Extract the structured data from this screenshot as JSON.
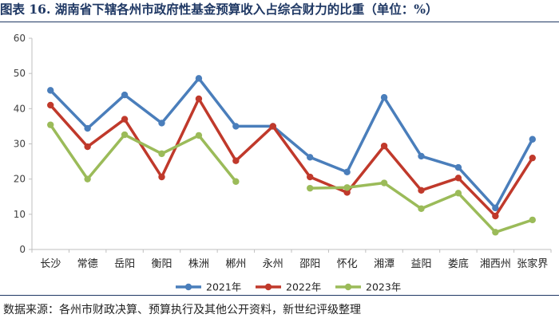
{
  "title": "图表 16.  湖南省下辖各州市政府性基金预算收入占综合财力的比重（单位：%）",
  "source": "数据来源：各州市财政决算、预算执行及其他公开资料，新世纪评级整理",
  "colors": {
    "2021年": "#4a7ebb",
    "2022年": "#c0392b",
    "2023年": "#9bbb59",
    "axis": "#bfbfbf",
    "text": "#404040"
  },
  "chart_data": {
    "type": "line",
    "title": "图表 16.  湖南省下辖各州市政府性基金预算收入占综合财力的比重（单位：%）",
    "xlabel": "",
    "ylabel": "",
    "ylim": [
      0,
      60
    ],
    "yticks": [
      0,
      10,
      20,
      30,
      40,
      50,
      60
    ],
    "grid": false,
    "legend": "bottom",
    "categories": [
      "长沙",
      "常德",
      "岳阳",
      "衡阳",
      "株洲",
      "郴州",
      "永州",
      "邵阳",
      "怀化",
      "湘潭",
      "益阳",
      "娄底",
      "湘西州",
      "张家界"
    ],
    "series": [
      {
        "name": "2021年",
        "values": [
          45.2,
          34.4,
          43.9,
          35.9,
          48.6,
          35.0,
          35.0,
          26.2,
          22.0,
          43.2,
          26.5,
          23.3,
          11.8,
          31.3
        ]
      },
      {
        "name": "2022年",
        "values": [
          41.0,
          29.2,
          37.0,
          20.6,
          42.8,
          25.2,
          35.0,
          20.6,
          16.2,
          29.4,
          16.8,
          20.3,
          9.5,
          26.0
        ]
      },
      {
        "name": "2023年",
        "values": [
          35.4,
          20.0,
          32.6,
          27.2,
          32.4,
          19.3,
          null,
          17.4,
          17.6,
          18.9,
          11.6,
          16.0,
          4.9,
          8.4
        ]
      }
    ]
  }
}
